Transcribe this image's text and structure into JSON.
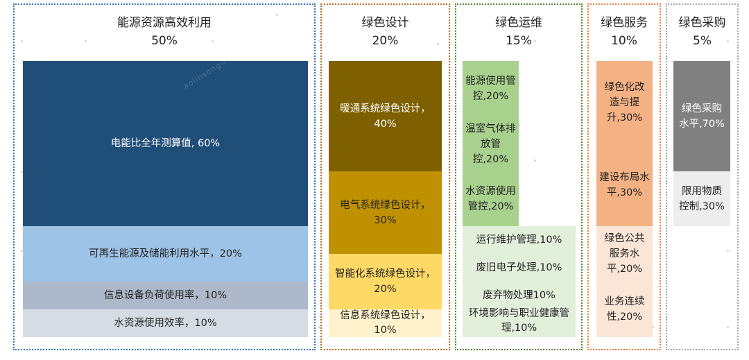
{
  "colors": {
    "energy_border": "#2e75b6",
    "design_border": "#b86b1f",
    "ops_border": "#548235",
    "service_border": "#ed7d31",
    "purchase_border": "#a5a5a5"
  },
  "watermark": "aolinsong-FN0-Pe",
  "sections": [
    {
      "title": "能源资源高效利用",
      "weight": "50%",
      "items": [
        {
          "label": "电能比全年测算值, 60%"
        },
        {
          "label": "可再生能源及储能利用水平，20%"
        },
        {
          "label": "信息设备负荷使用率，10%"
        },
        {
          "label": "水资源使用效率，10%"
        }
      ]
    },
    {
      "title": "绿色设计",
      "weight": "20%",
      "items": [
        {
          "label": "暖通系统绿色设计，40%"
        },
        {
          "label": "电气系统绿色设计，30%"
        },
        {
          "label": "智能化系统绿色设计，20%"
        },
        {
          "label": "信息系统绿色设计，10%"
        }
      ]
    },
    {
      "title": "绿色运维",
      "weight": "15%",
      "items": [
        {
          "label": "能源使用管控,20%"
        },
        {
          "label": "温室气体排放管控,20%"
        },
        {
          "label": "水资源使用管控,20%"
        },
        {
          "label": "运行维护管理,10%"
        },
        {
          "label": "废旧电子处理,10%"
        },
        {
          "label": "废弃物处理10%"
        },
        {
          "label": "环境影响与职业健康管理,10%"
        }
      ]
    },
    {
      "title": "绿色服务",
      "weight": "10%",
      "items": [
        {
          "label": "绿色化改造与提升,30%"
        },
        {
          "label": "建设布局水平,30%"
        },
        {
          "label": "绿色公共服务水平,20%"
        },
        {
          "label": "业务连续性,20%"
        }
      ]
    },
    {
      "title": "绿色采购",
      "weight": "5%",
      "items": [
        {
          "label": "绿色采购水平,70%"
        },
        {
          "label": "限用物质控制,30%"
        }
      ]
    }
  ]
}
